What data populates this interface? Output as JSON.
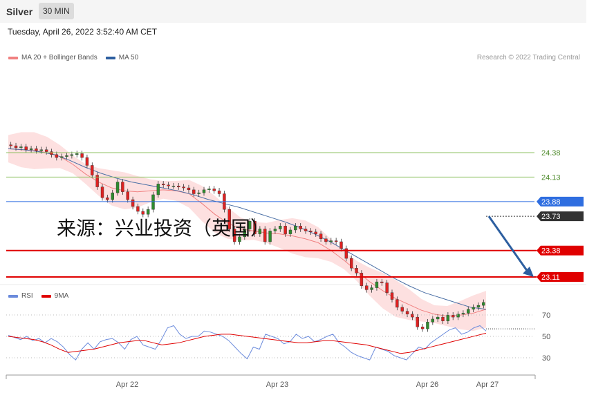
{
  "header": {
    "symbol": "Silver",
    "timeframe": "30 MIN"
  },
  "datetime": "Tuesday, April 26, 2022 3:52:40 AM CET",
  "legend_main": [
    {
      "name": "MA 20 + Bollinger Bands",
      "color": "#f08080"
    },
    {
      "name": "MA 50",
      "color": "#2d5fa0"
    }
  ],
  "credit": "Research © 2022 Trading Central",
  "watermark": "来源：兴业投资（英国）",
  "legend_rsi": [
    {
      "name": "RSI",
      "color": "#6b8bdc"
    },
    {
      "name": "9MA",
      "color": "#e00000"
    }
  ],
  "colors": {
    "up": "#2e8b2e",
    "down": "#d22",
    "support": "#e00000",
    "pivot": "#2f6ee0",
    "resistance": "#8dc060",
    "current": "#333333",
    "band": "#fde0e0",
    "ma20": "#f08080",
    "ma50": "#4a6fa5"
  },
  "chart_data": {
    "type": "line",
    "price_axis": {
      "ylim": [
        23.0,
        24.5
      ]
    },
    "x_labels": [
      "Apr 22",
      "Apr 23",
      "Apr 26",
      "Apr 27"
    ],
    "levels": [
      {
        "value": 24.38,
        "label": "24.38",
        "kind": "resistance"
      },
      {
        "value": 24.13,
        "label": "24.13",
        "kind": "resistance"
      },
      {
        "value": 23.88,
        "label": "23.88",
        "kind": "pivot"
      },
      {
        "value": 23.73,
        "label": "23.73",
        "kind": "current"
      },
      {
        "value": 23.38,
        "label": "23.38",
        "kind": "support"
      },
      {
        "value": 23.11,
        "label": "23.11",
        "kind": "support"
      }
    ],
    "close_series": [
      24.45,
      24.43,
      24.44,
      24.41,
      24.42,
      24.4,
      24.41,
      24.39,
      24.36,
      24.33,
      24.34,
      24.35,
      24.36,
      24.37,
      24.33,
      24.25,
      24.15,
      24.03,
      23.92,
      23.9,
      23.97,
      24.08,
      23.98,
      23.9,
      23.83,
      23.78,
      23.75,
      23.8,
      23.95,
      24.06,
      24.05,
      24.04,
      24.04,
      24.03,
      24.02,
      24.0,
      23.96,
      23.97,
      24.0,
      24.01,
      23.99,
      23.96,
      23.8,
      23.6,
      23.47,
      23.52,
      23.6,
      23.68,
      23.55,
      23.6,
      23.47,
      23.58,
      23.6,
      23.63,
      23.55,
      23.59,
      23.63,
      23.6,
      23.58,
      23.57,
      23.55,
      23.5,
      23.47,
      23.48,
      23.47,
      23.4,
      23.3,
      23.2,
      23.15,
      23.02,
      22.98,
      23.0,
      23.06,
      23.05,
      22.95,
      22.88,
      22.8,
      22.76,
      22.73,
      22.7,
      22.6,
      22.58,
      22.65,
      22.68,
      22.7,
      22.66,
      22.72,
      22.7,
      22.73,
      22.74,
      22.78,
      22.8,
      22.82,
      22.85
    ],
    "close_series_note": "",
    "ma20": [
      24.42,
      24.41,
      24.4,
      24.38,
      24.34,
      24.26,
      24.16,
      24.08,
      24.02,
      23.99,
      23.98,
      23.99,
      24.0,
      23.99,
      23.96,
      23.86,
      23.75,
      23.66,
      23.6,
      23.58,
      23.56,
      23.55,
      23.53,
      23.5,
      23.46,
      23.38,
      23.28,
      23.17,
      23.06,
      22.97,
      22.89,
      22.83,
      22.77,
      22.73,
      22.71,
      22.72,
      22.74,
      22.78
    ],
    "ma50": [
      24.42,
      24.41,
      24.39,
      24.36,
      24.3,
      24.23,
      24.17,
      24.12,
      24.08,
      24.05,
      24.02,
      23.99,
      23.95,
      23.9,
      23.86,
      23.82,
      23.77,
      23.72,
      23.67,
      23.61,
      23.54,
      23.46,
      23.37,
      23.28,
      23.19,
      23.1,
      23.02,
      22.95,
      22.9,
      22.85,
      22.8,
      22.78
    ],
    "forecast": {
      "from": 23.73,
      "to": 23.11
    },
    "rsi": {
      "ticks": [
        70,
        50,
        30
      ],
      "rsi": [
        51,
        49,
        47,
        50,
        46,
        48,
        44,
        48,
        45,
        40,
        33,
        28,
        38,
        44,
        38,
        45,
        47,
        48,
        44,
        38,
        47,
        50,
        42,
        40,
        38,
        47,
        58,
        60,
        52,
        48,
        50,
        50,
        55,
        54,
        52,
        50,
        46,
        40,
        34,
        29,
        40,
        38,
        52,
        50,
        48,
        43,
        45,
        52,
        48,
        50,
        45,
        47,
        50,
        52,
        44,
        40,
        35,
        32,
        30,
        28,
        40,
        38,
        36,
        32,
        30,
        28,
        34,
        40,
        38,
        44,
        48,
        52,
        56,
        58,
        52,
        54,
        58,
        60,
        55
      ],
      "ma9": [
        50,
        49,
        48,
        47,
        45,
        42,
        38,
        35,
        36,
        37,
        38,
        40,
        42,
        44,
        45,
        46,
        46,
        44,
        42,
        43,
        44,
        46,
        48,
        50,
        51,
        52,
        52,
        51,
        50,
        49,
        48,
        47,
        46,
        45,
        44,
        44,
        45,
        46,
        46,
        45,
        44,
        43,
        42,
        40,
        38,
        36,
        34,
        35,
        37,
        39,
        41,
        43,
        45,
        47,
        49,
        51,
        53
      ]
    }
  }
}
